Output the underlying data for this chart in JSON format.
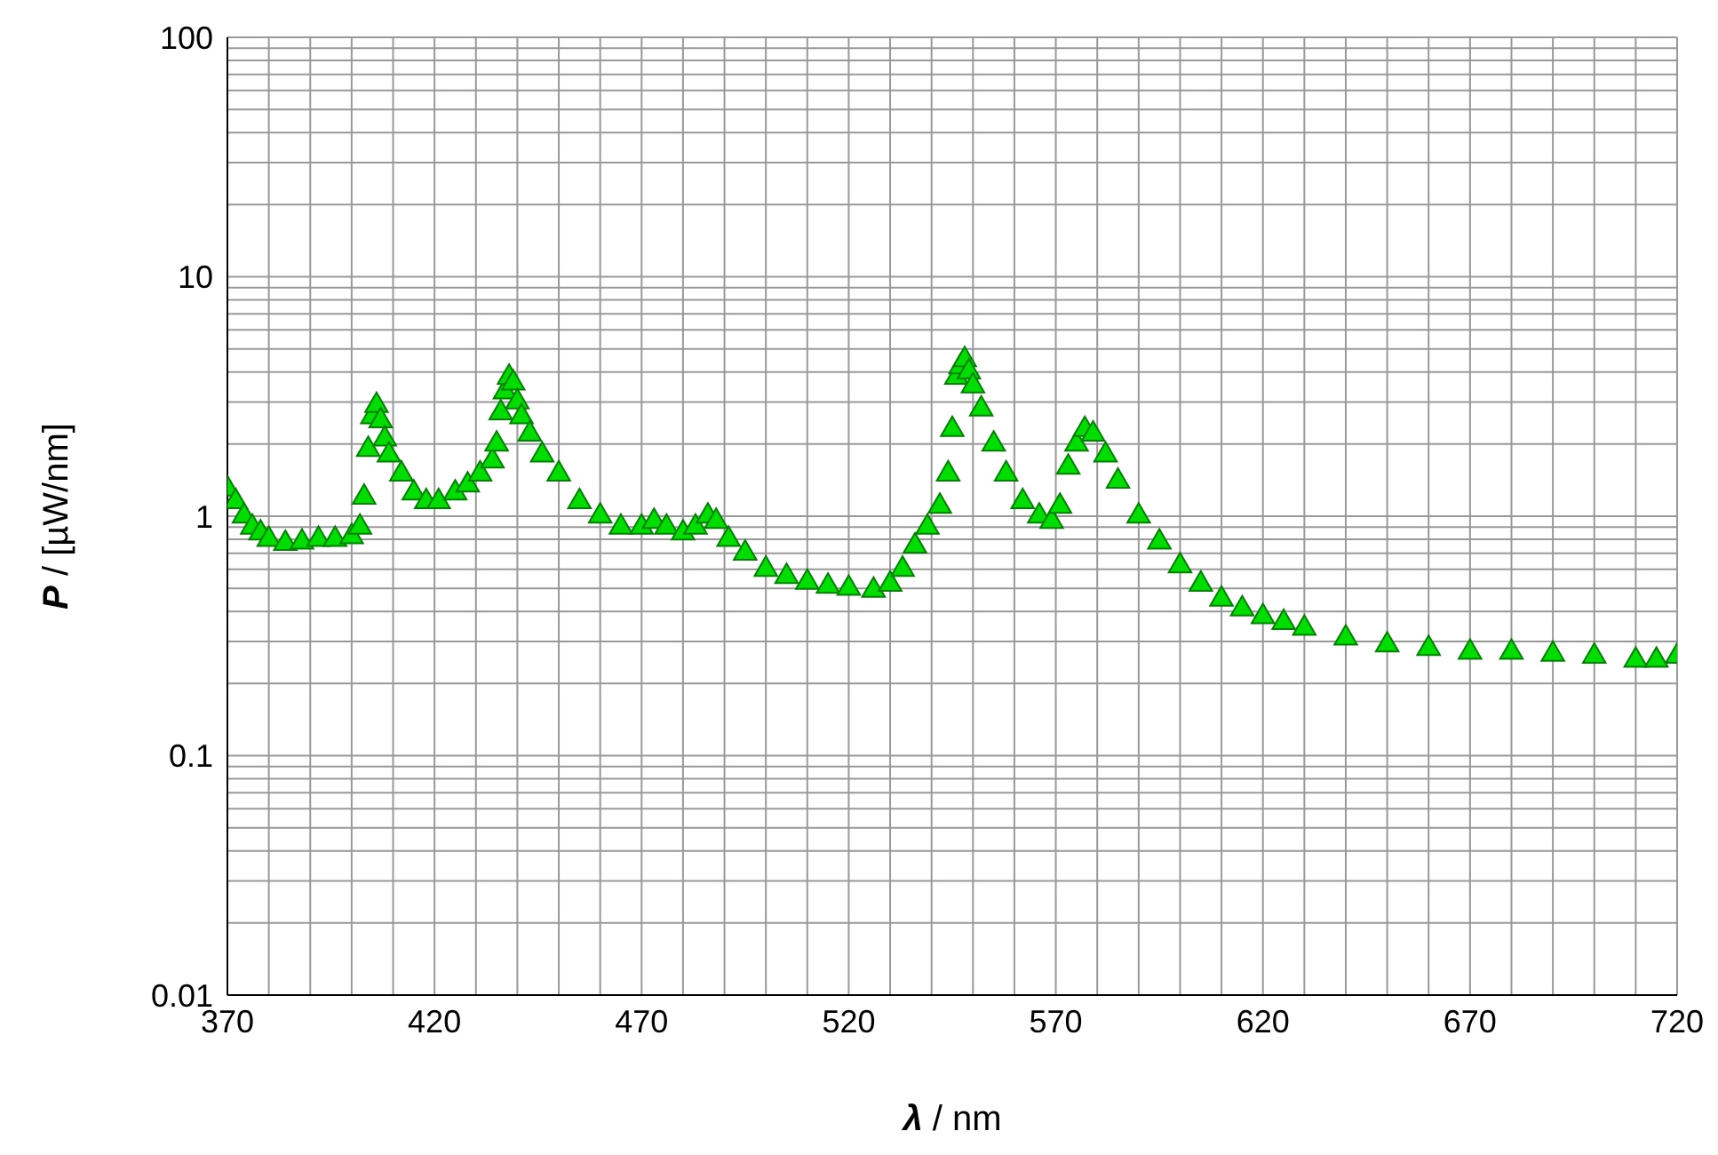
{
  "chart_data": {
    "type": "scatter",
    "xlabel": "λ / nm",
    "ylabel": "P / [µW/nm]",
    "log": "y",
    "grid": true,
    "marker": "triangle",
    "legend": false,
    "xlim": [
      370,
      720
    ],
    "xticks": [
      370,
      {
        "value": 380,
        "label": null
      },
      {
        "value": 390,
        "label": null
      },
      {
        "value": 400,
        "label": null
      },
      {
        "value": 410,
        "label": null
      },
      420,
      {
        "value": 430,
        "label": null
      },
      {
        "value": 440,
        "label": null
      },
      {
        "value": 450,
        "label": null
      },
      {
        "value": 460,
        "label": null
      },
      470,
      {
        "value": 480,
        "label": null
      },
      {
        "value": 490,
        "label": null
      },
      {
        "value": 500,
        "label": null
      },
      {
        "value": 510,
        "label": null
      },
      520,
      {
        "value": 530,
        "label": null
      },
      {
        "value": 540,
        "label": null
      },
      {
        "value": 550,
        "label": null
      },
      {
        "value": 560,
        "label": null
      },
      570,
      {
        "value": 580,
        "label": null
      },
      {
        "value": 590,
        "label": null
      },
      {
        "value": 600,
        "label": null
      },
      {
        "value": 610,
        "label": null
      },
      620,
      {
        "value": 630,
        "label": null
      },
      {
        "value": 640,
        "label": null
      },
      {
        "value": 650,
        "label": null
      },
      {
        "value": 660,
        "label": null
      },
      670,
      {
        "value": 680,
        "label": null
      },
      {
        "value": 690,
        "label": null
      },
      {
        "value": 700,
        "label": null
      },
      {
        "value": 710,
        "label": null
      },
      720
    ],
    "ylim": [
      0.01,
      100
    ],
    "yticks": [
      0.01,
      {
        "value": 0.02,
        "label": null
      },
      {
        "value": 0.03,
        "label": null
      },
      {
        "value": 0.04,
        "label": null
      },
      {
        "value": 0.05,
        "label": null
      },
      {
        "value": 0.06,
        "label": null
      },
      {
        "value": 0.07,
        "label": null
      },
      {
        "value": 0.08,
        "label": null
      },
      {
        "value": 0.09,
        "label": null
      },
      0.1,
      {
        "value": 0.2,
        "label": null
      },
      {
        "value": 0.3,
        "label": null
      },
      {
        "value": 0.4,
        "label": null
      },
      {
        "value": 0.5,
        "label": null
      },
      {
        "value": 0.6,
        "label": null
      },
      {
        "value": 0.7,
        "label": null
      },
      {
        "value": 0.8,
        "label": null
      },
      {
        "value": 0.9,
        "label": null
      },
      1,
      {
        "value": 2,
        "label": null
      },
      {
        "value": 3,
        "label": null
      },
      {
        "value": 4,
        "label": null
      },
      {
        "value": 5,
        "label": null
      },
      {
        "value": 6,
        "label": null
      },
      {
        "value": 7,
        "label": null
      },
      {
        "value": 8,
        "label": null
      },
      {
        "value": 9,
        "label": null
      },
      10,
      {
        "value": 20,
        "label": null
      },
      {
        "value": 30,
        "label": null
      },
      {
        "value": 40,
        "label": null
      },
      {
        "value": 50,
        "label": null
      },
      {
        "value": 60,
        "label": null
      },
      {
        "value": 70,
        "label": null
      },
      {
        "value": 80,
        "label": null
      },
      {
        "value": 90,
        "label": null
      },
      100
    ],
    "series": [
      {
        "color": "#00dd00",
        "x": [
          370,
          372,
          374,
          376,
          378,
          380,
          384,
          388,
          392,
          396,
          400,
          402,
          403,
          404,
          405,
          406,
          407,
          408,
          409,
          412,
          415,
          418,
          421,
          425,
          428,
          431,
          434,
          435,
          436,
          437,
          438,
          439,
          440,
          441,
          443,
          446,
          450,
          455,
          460,
          465,
          470,
          473,
          476,
          480,
          483,
          486,
          488,
          491,
          495,
          500,
          505,
          510,
          515,
          520,
          526,
          530,
          533,
          536,
          539,
          542,
          544,
          545,
          546,
          547,
          548,
          549,
          550,
          552,
          555,
          558,
          562,
          566,
          569,
          571,
          573,
          575,
          577,
          579,
          582,
          585,
          590,
          595,
          600,
          605,
          610,
          615,
          620,
          625,
          630,
          640,
          650,
          660,
          670,
          680,
          690,
          700,
          710,
          715,
          720
        ],
        "values": [
          1.3,
          1.15,
          1.0,
          0.9,
          0.85,
          0.8,
          0.77,
          0.78,
          0.8,
          0.8,
          0.82,
          0.9,
          1.2,
          1.9,
          2.6,
          2.9,
          2.5,
          2.1,
          1.8,
          1.5,
          1.25,
          1.15,
          1.15,
          1.25,
          1.35,
          1.5,
          1.7,
          2.0,
          2.7,
          3.3,
          3.8,
          3.6,
          3.0,
          2.6,
          2.2,
          1.8,
          1.5,
          1.15,
          1.0,
          0.9,
          0.9,
          0.95,
          0.9,
          0.85,
          0.9,
          1.0,
          0.95,
          0.8,
          0.7,
          0.6,
          0.56,
          0.53,
          0.51,
          0.5,
          0.49,
          0.52,
          0.6,
          0.75,
          0.9,
          1.1,
          1.5,
          2.3,
          3.8,
          4.2,
          4.5,
          4.0,
          3.5,
          2.8,
          2.0,
          1.5,
          1.15,
          1.0,
          0.95,
          1.1,
          1.6,
          2.0,
          2.3,
          2.2,
          1.8,
          1.4,
          1.0,
          0.78,
          0.62,
          0.52,
          0.45,
          0.41,
          0.38,
          0.36,
          0.34,
          0.31,
          0.29,
          0.28,
          0.27,
          0.27,
          0.265,
          0.26,
          0.25,
          0.25,
          0.26
        ]
      }
    ]
  }
}
